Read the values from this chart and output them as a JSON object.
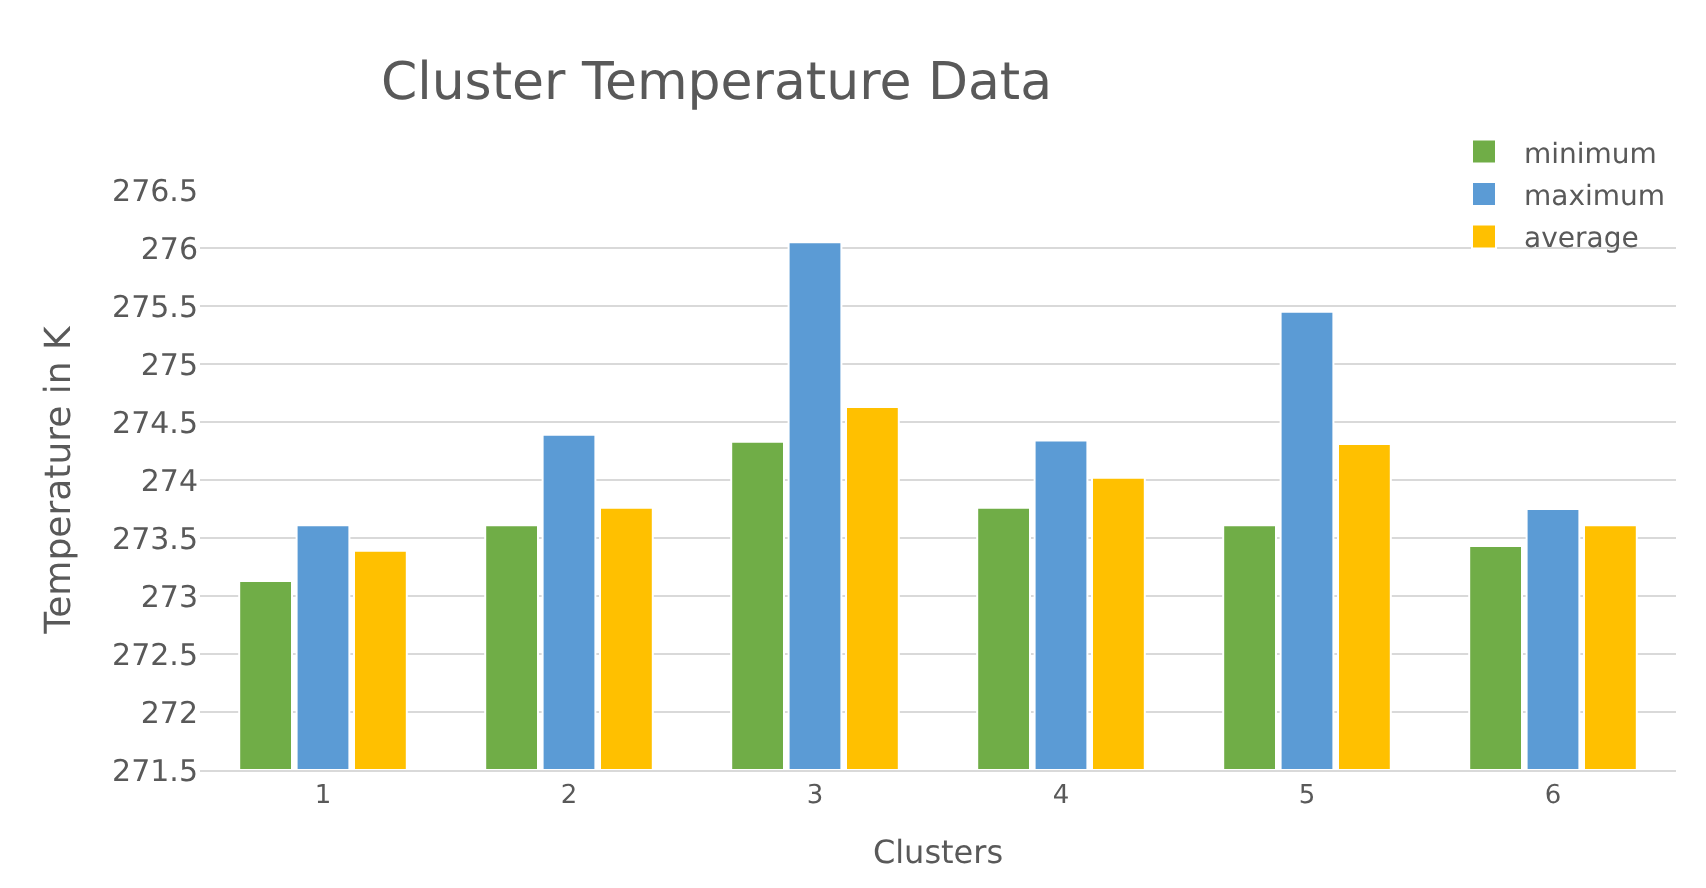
{
  "chart_data": {
    "type": "bar",
    "title": "Cluster Temperature Data",
    "xlabel": "Clusters",
    "ylabel": "Temperature in K",
    "categories": [
      "1",
      "2",
      "3",
      "4",
      "5",
      "6"
    ],
    "series": [
      {
        "name": "minimum",
        "color": "#70ad47",
        "values": [
          273.13,
          273.61,
          274.33,
          273.76,
          273.61,
          273.43
        ]
      },
      {
        "name": "maximum",
        "color": "#5b9bd5",
        "values": [
          273.61,
          274.39,
          276.05,
          274.34,
          275.45,
          273.75
        ]
      },
      {
        "name": "average",
        "color": "#ffc000",
        "values": [
          273.39,
          273.76,
          274.63,
          274.02,
          274.31,
          273.61
        ]
      }
    ],
    "ylim": [
      271.5,
      276.5
    ],
    "yticks": [
      271.5,
      272,
      272.5,
      273,
      273.5,
      274,
      274.5,
      275,
      275.5,
      276,
      276.5
    ],
    "grid": "y",
    "legend": "top right"
  }
}
